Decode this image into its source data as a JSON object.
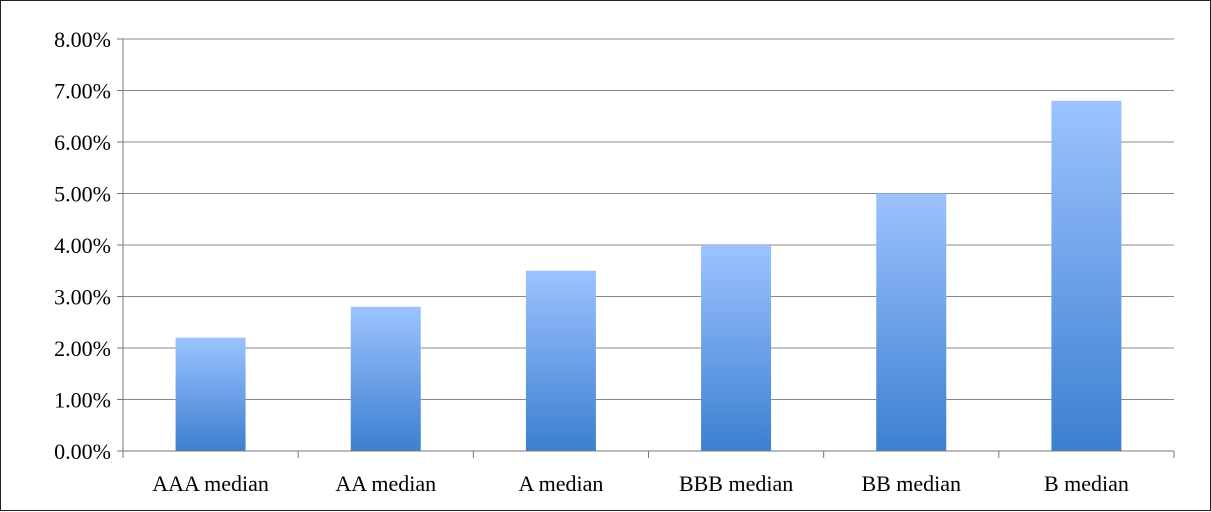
{
  "chart_data": {
    "type": "bar",
    "categories": [
      "AAA median",
      "AA median",
      "A median",
      "BBB median",
      "BB median",
      "B median"
    ],
    "values": [
      0.022,
      0.028,
      0.035,
      0.04,
      0.05,
      0.068
    ],
    "y_tick_values": [
      0,
      0.01,
      0.02,
      0.03,
      0.04,
      0.05,
      0.06,
      0.07,
      0.08
    ],
    "y_tick_labels": [
      "0.00%",
      "1.00%",
      "2.00%",
      "3.00%",
      "4.00%",
      "5.00%",
      "6.00%",
      "7.00%",
      "8.00%"
    ],
    "title": "",
    "xlabel": "",
    "ylabel": "",
    "ylim": [
      0,
      0.08
    ],
    "grid": true,
    "legend": "none",
    "colors": {
      "bar_top": "#9cc3ff",
      "bar_bottom": "#3c7fd0",
      "gridline": "#888888",
      "axis": "#777777"
    }
  }
}
